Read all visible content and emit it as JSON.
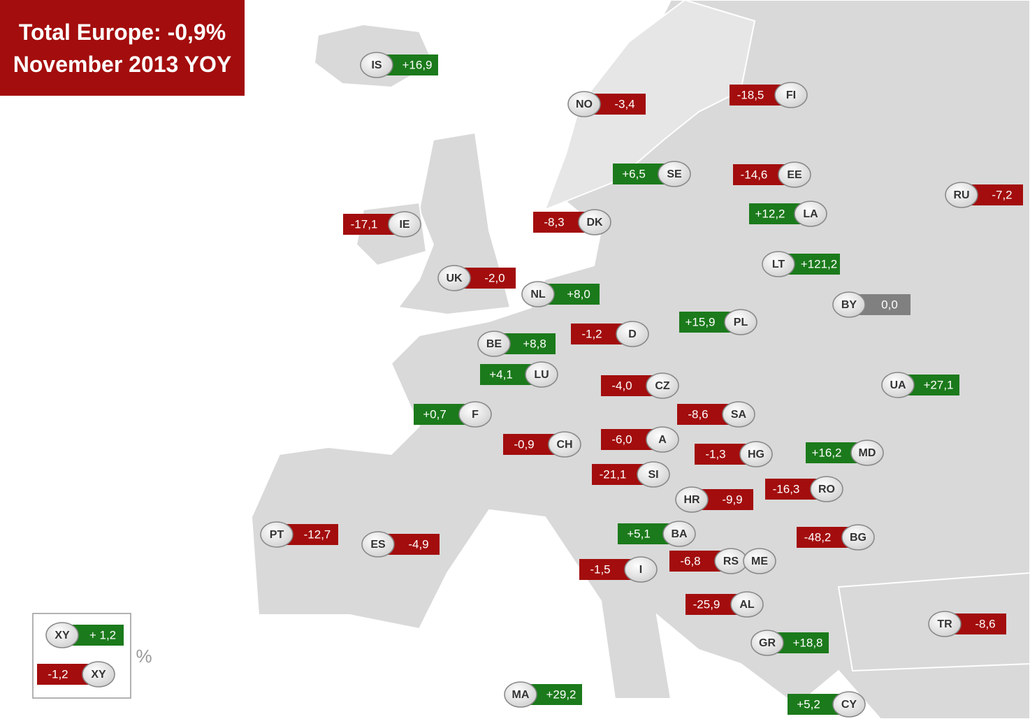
{
  "header": {
    "title": "Total Europe: -0,9%",
    "subtitle": "November 2013 YOY"
  },
  "badges": [
    {
      "code": "IS",
      "value": "+16,9"
    },
    {
      "code": "NO",
      "value": "-3,4"
    },
    {
      "code": "FI",
      "value": "-18,5"
    },
    {
      "code": "SE",
      "value": "+6,5"
    },
    {
      "code": "EE",
      "value": "-14,6"
    },
    {
      "code": "RU",
      "value": "-7,2"
    },
    {
      "code": "LA",
      "value": "+12,2"
    },
    {
      "code": "IE",
      "value": "-17,1"
    },
    {
      "code": "DK",
      "value": "-8,3"
    },
    {
      "code": "LT",
      "value": "+121,2"
    },
    {
      "code": "UK",
      "value": "-2,0"
    },
    {
      "code": "NL",
      "value": "+8,0"
    },
    {
      "code": "BY",
      "value": "0,0"
    },
    {
      "code": "PL",
      "value": "+15,9"
    },
    {
      "code": "D",
      "value": "-1,2"
    },
    {
      "code": "BE",
      "value": "+8,8"
    },
    {
      "code": "LU",
      "value": "+4,1"
    },
    {
      "code": "CZ",
      "value": "-4,0"
    },
    {
      "code": "UA",
      "value": "+27,1"
    },
    {
      "code": "F",
      "value": "+0,7"
    },
    {
      "code": "SA",
      "value": "-8,6"
    },
    {
      "code": "CH",
      "value": "-0,9"
    },
    {
      "code": "A",
      "value": "-6,0"
    },
    {
      "code": "MD",
      "value": "+16,2"
    },
    {
      "code": "HG",
      "value": "-1,3"
    },
    {
      "code": "SI",
      "value": "-21,1"
    },
    {
      "code": "RO",
      "value": "-16,3"
    },
    {
      "code": "HR",
      "value": "-9,9"
    },
    {
      "code": "PT",
      "value": "-12,7"
    },
    {
      "code": "ES",
      "value": "-4,9"
    },
    {
      "code": "BA",
      "value": "+5,1"
    },
    {
      "code": "BG",
      "value": "-48,2"
    },
    {
      "code": "RS",
      "value": "-6,8"
    },
    {
      "code": "ME"
    },
    {
      "code": "I",
      "value": "-1,5"
    },
    {
      "code": "AL",
      "value": "-25,9"
    },
    {
      "code": "TR",
      "value": "-8,6"
    },
    {
      "code": "GR",
      "value": "+18,8"
    },
    {
      "code": "MA",
      "value": "+29,2"
    },
    {
      "code": "CY",
      "value": "+5,2"
    }
  ],
  "legend": {
    "positive": {
      "code": "XY",
      "value": "+ 1,2"
    },
    "negative": {
      "code": "XY",
      "value": "-1,2"
    },
    "unit": "%"
  }
}
